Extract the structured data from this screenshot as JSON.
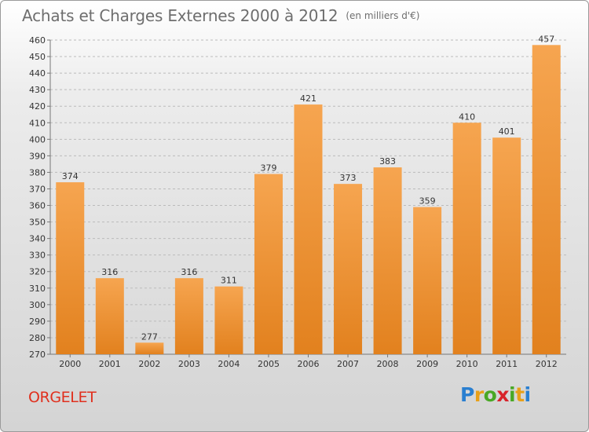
{
  "title": "Achats et Charges Externes 2000 à 2012",
  "subtitle": "(en milliers d'€)",
  "town": "ORGELET",
  "logo": {
    "letters": [
      "P",
      "r",
      "o",
      "x",
      "i",
      "t",
      "i"
    ],
    "colors": [
      "#2a7fd0",
      "#e8a019",
      "#49a825",
      "#d8232a",
      "#49a825",
      "#e8a019",
      "#2a7fd0"
    ]
  },
  "colors": {
    "bar_light": "#f6a550",
    "bar_dark": "#e2811e",
    "grid": "#bbbbbb"
  },
  "chart_data": {
    "type": "bar",
    "categories": [
      "2000",
      "2001",
      "2002",
      "2003",
      "2004",
      "2005",
      "2006",
      "2007",
      "2008",
      "2009",
      "2010",
      "2011",
      "2012"
    ],
    "values": [
      374,
      316,
      277,
      316,
      311,
      379,
      421,
      373,
      383,
      359,
      410,
      401,
      457
    ],
    "ylim": [
      270,
      460
    ],
    "ytick_step": 10,
    "grid": true
  }
}
